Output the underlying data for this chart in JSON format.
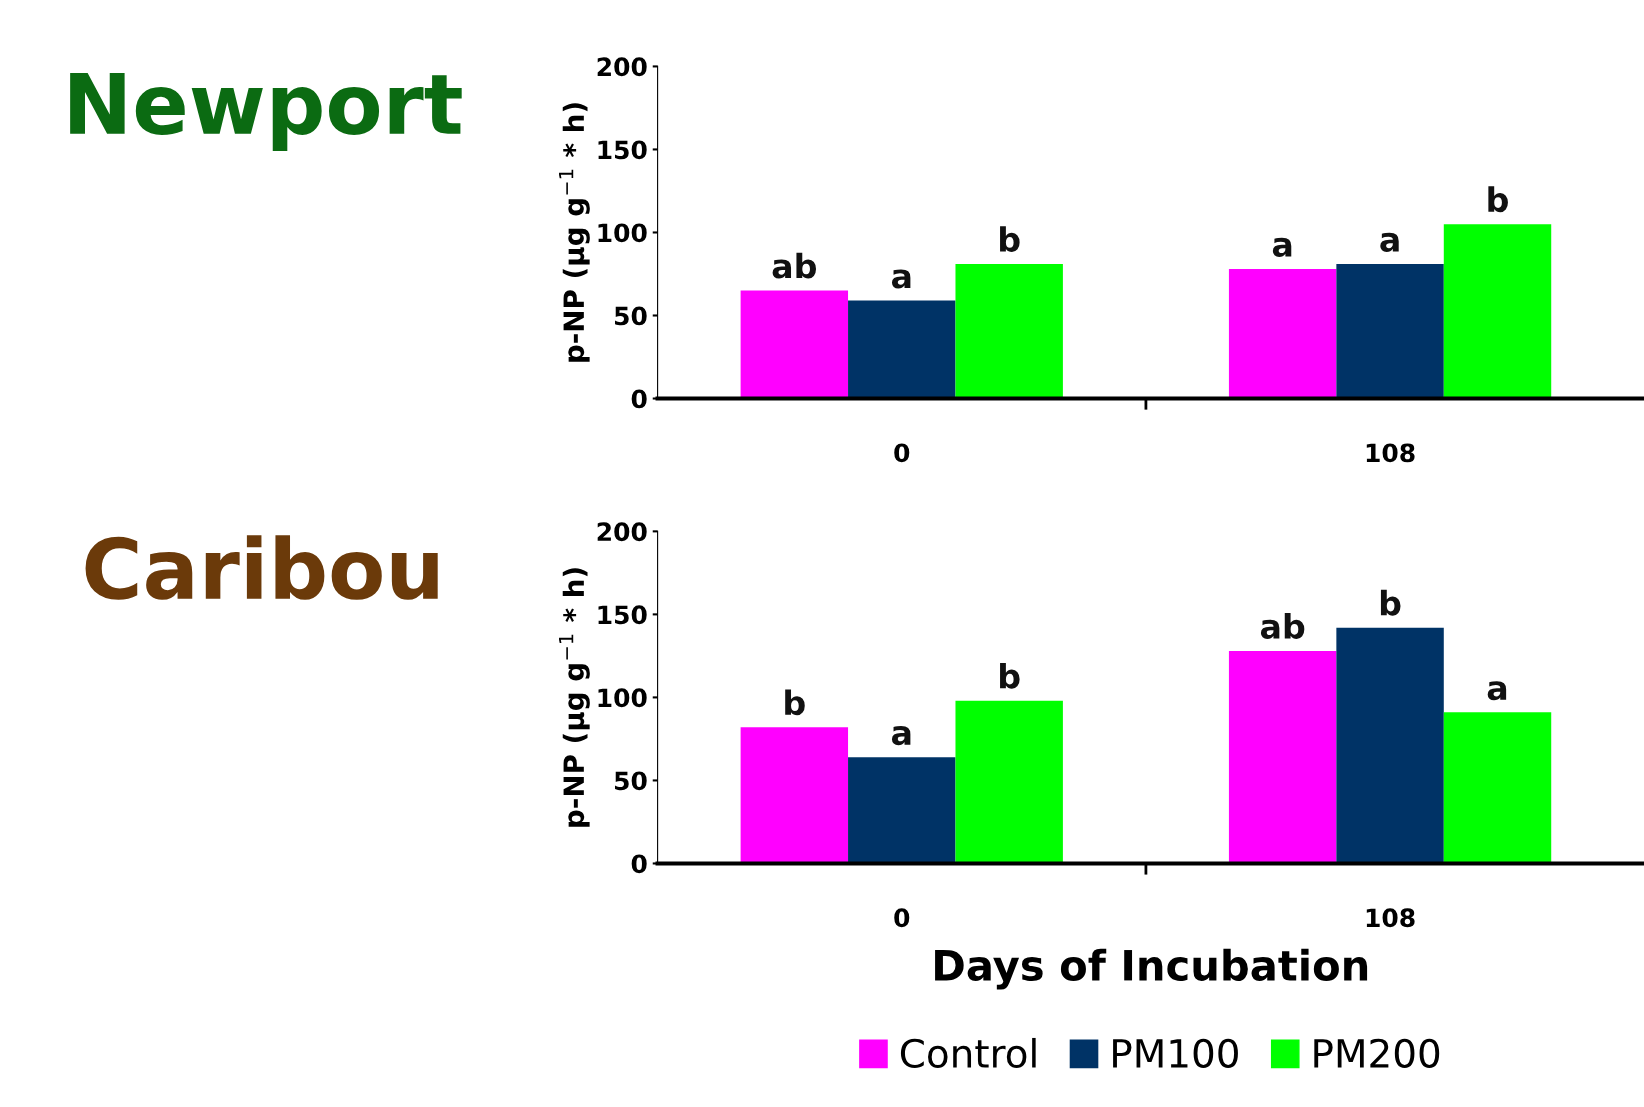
{
  "chart_data": [
    {
      "type": "bar",
      "title": "Newport",
      "ylabel": "p-NP (µg g$^{−1}$ * h)",
      "categories": [
        "0",
        "108"
      ],
      "ylim": [
        0,
        200
      ],
      "yticks": [
        0,
        50,
        100,
        150,
        200
      ],
      "grid": false,
      "legend": false,
      "series": [
        {
          "color": "#ff00ff",
          "values": [
            65,
            78
          ],
          "value_labels": [
            "ab",
            "a"
          ]
        },
        {
          "color": "#003366",
          "values": [
            59,
            81
          ],
          "value_labels": [
            "a",
            "a"
          ]
        },
        {
          "color": "#00ff00",
          "values": [
            81,
            105
          ],
          "value_labels": [
            "b",
            "b"
          ]
        }
      ]
    },
    {
      "type": "bar",
      "title": "Caribou",
      "ylabel": "p-NP (µg g$^{−1}$ * h)",
      "xlabel": "Days of Incubation",
      "categories": [
        "0",
        "108"
      ],
      "ylim": [
        0,
        200
      ],
      "yticks": [
        0,
        50,
        100,
        150,
        200
      ],
      "grid": false,
      "legend": "bottom",
      "series": [
        {
          "name": "Control",
          "color": "#ff00ff",
          "values": [
            82,
            128
          ],
          "value_labels": [
            "b",
            "ab"
          ]
        },
        {
          "name": "PM100",
          "color": "#003366",
          "values": [
            64,
            142
          ],
          "value_labels": [
            "a",
            "b"
          ]
        },
        {
          "name": "PM200",
          "color": "#00ff00",
          "values": [
            98,
            91
          ],
          "value_labels": [
            "b",
            "a"
          ]
        }
      ]
    }
  ]
}
